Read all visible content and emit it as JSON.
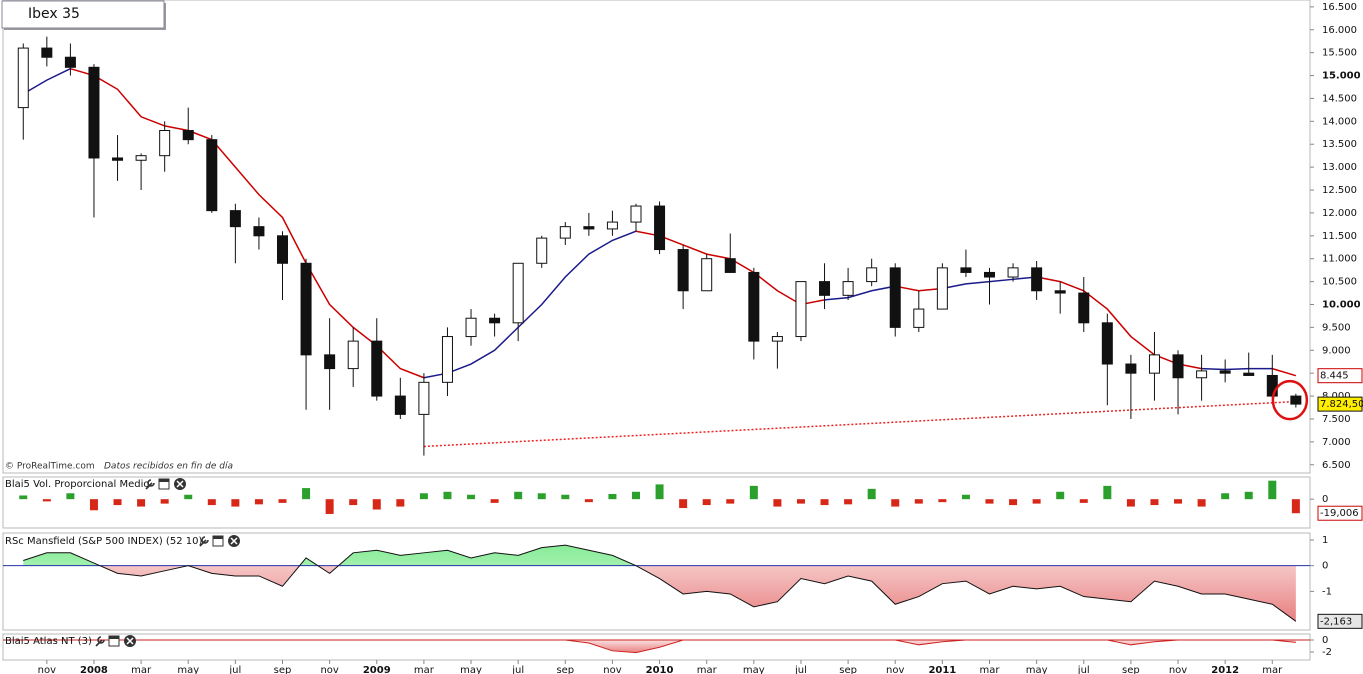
{
  "title": "Ibex 35",
  "credit": "© ProRealTime.com",
  "credit_note": "Datos recibidos en fin de día",
  "chart_data": [
    {
      "type": "candlestick",
      "x": [
        0,
        1,
        2,
        3,
        4,
        5,
        6,
        7,
        8,
        9,
        10,
        11,
        12,
        13,
        14,
        15,
        16,
        17,
        18,
        19,
        20,
        21,
        22,
        23,
        24,
        25,
        26,
        27,
        28,
        29,
        30,
        31,
        32,
        33,
        34,
        35,
        36,
        37,
        38,
        39,
        40,
        41,
        42,
        43,
        44,
        45,
        46,
        47,
        48,
        49,
        50,
        51,
        52,
        53,
        54
      ],
      "open": [
        14300,
        15600,
        15400,
        15180,
        13200,
        13150,
        13250,
        13800,
        13600,
        12050,
        11700,
        11500,
        10900,
        8900,
        8600,
        9200,
        8000,
        7600,
        8300,
        9300,
        9700,
        9600,
        10900,
        11450,
        11700,
        11650,
        11800,
        12150,
        11200,
        10300,
        11000,
        10700,
        9200,
        9300,
        10500,
        10200,
        10500,
        10800,
        9500,
        9900,
        10800,
        10700,
        10600,
        10800,
        10300,
        10250,
        9600,
        8700,
        8500,
        8900,
        8400,
        8550,
        8500,
        8450,
        8000
      ],
      "high": [
        15700,
        15850,
        15700,
        15250,
        13700,
        13300,
        14000,
        14300,
        13700,
        12200,
        11900,
        11600,
        11000,
        9700,
        9500,
        9700,
        8400,
        8500,
        9500,
        9900,
        9800,
        10900,
        11500,
        11800,
        12000,
        12050,
        12200,
        12250,
        11300,
        11100,
        11550,
        10800,
        9400,
        10500,
        10900,
        10800,
        11000,
        10900,
        10300,
        10900,
        11200,
        10800,
        10900,
        10950,
        10500,
        10600,
        9800,
        8900,
        9400,
        9000,
        8900,
        8800,
        8950,
        8900,
        8050
      ],
      "low": [
        13600,
        15200,
        15000,
        11900,
        12700,
        12500,
        12900,
        13500,
        12000,
        10900,
        11200,
        10100,
        7700,
        7700,
        8200,
        7900,
        7500,
        6700,
        8000,
        9100,
        9300,
        9200,
        10800,
        11300,
        11500,
        11500,
        11600,
        11100,
        9900,
        10300,
        10700,
        8800,
        8600,
        9200,
        9900,
        10100,
        10400,
        9300,
        9400,
        9900,
        10600,
        10000,
        10500,
        10100,
        9800,
        9400,
        7800,
        7500,
        7900,
        7600,
        7900,
        8300,
        8450,
        7950,
        7750
      ],
      "close": [
        15600,
        15400,
        15180,
        13200,
        13150,
        13250,
        13800,
        13600,
        12050,
        11700,
        11500,
        10900,
        8900,
        8600,
        9200,
        8000,
        7600,
        8300,
        9300,
        9700,
        9600,
        10900,
        11450,
        11700,
        11650,
        11800,
        12150,
        11200,
        10300,
        11000,
        10700,
        9200,
        9300,
        10500,
        10200,
        10500,
        10800,
        9500,
        9900,
        10800,
        10700,
        10600,
        10800,
        10300,
        10250,
        9600,
        8700,
        8500,
        8900,
        8400,
        8550,
        8500,
        8450,
        8000,
        7824.5
      ],
      "up_color": "#ffffff",
      "down_color": "#111111",
      "lines": [
        {
          "color": "#cc0000",
          "values": [
            null,
            null,
            15150,
            15000,
            14700,
            14100,
            13900,
            13800,
            13600,
            13000,
            12400,
            11900,
            10900,
            10000,
            9500,
            9100,
            8600,
            8400,
            null,
            null,
            null,
            null,
            null,
            null,
            null,
            null,
            11600,
            11500,
            11300,
            11100,
            11000,
            10700,
            10300,
            10000,
            10100,
            null,
            null,
            10400,
            10300,
            10350,
            null,
            null,
            null,
            10600,
            10500,
            10300,
            9900,
            9300,
            8900,
            8700,
            8600,
            null,
            null,
            8600,
            8445
          ]
        },
        {
          "color": "#1a1a8c",
          "values": [
            14600,
            14900,
            15150,
            null,
            null,
            null,
            null,
            null,
            null,
            null,
            null,
            null,
            null,
            null,
            null,
            null,
            null,
            8400,
            8500,
            8700,
            9000,
            9500,
            10000,
            10600,
            11100,
            11400,
            11600,
            null,
            null,
            null,
            null,
            null,
            null,
            null,
            10100,
            10150,
            10300,
            10400,
            null,
            10350,
            10450,
            10500,
            10550,
            10600,
            null,
            null,
            null,
            null,
            null,
            null,
            8600,
            8580,
            8600,
            8600,
            null
          ]
        }
      ],
      "trendline": {
        "color": "#ee2222",
        "x": [
          17,
          54
        ],
        "values": [
          6900,
          7880
        ]
      },
      "value_tags": [
        {
          "value": 8445,
          "label": "8.445",
          "color": "#cc0000",
          "fill": "#ffffff"
        },
        {
          "value": 7824.5,
          "label": "7.824,50",
          "color": "#111111",
          "fill": "#ffee00"
        }
      ],
      "ylim": [
        6320,
        16650
      ],
      "yticks": [
        {
          "value": 6500,
          "label": "6.500"
        },
        {
          "value": 7000,
          "label": "7.000"
        },
        {
          "value": 7500,
          "label": "7.500"
        },
        {
          "value": 8000,
          "label": "8.000"
        },
        {
          "value": 8500,
          "label": "8.500"
        },
        {
          "value": 9000,
          "label": "9.000"
        },
        {
          "value": 9500,
          "label": "9.500"
        },
        {
          "value": 10000,
          "label": "10.000"
        },
        {
          "value": 10500,
          "label": "10.500"
        },
        {
          "value": 11000,
          "label": "11.000"
        },
        {
          "value": 11500,
          "label": "11.500"
        },
        {
          "value": 12000,
          "label": "12.000"
        },
        {
          "value": 12500,
          "label": "12.500"
        },
        {
          "value": 13000,
          "label": "13.000"
        },
        {
          "value": 13500,
          "label": "13.500"
        },
        {
          "value": 14000,
          "label": "14.000"
        },
        {
          "value": 14500,
          "label": "14.500"
        },
        {
          "value": 15000,
          "label": "15.000"
        },
        {
          "value": 15500,
          "label": "15.500"
        },
        {
          "value": 16000,
          "label": "16.000"
        },
        {
          "value": 16500,
          "label": "16.500"
        }
      ],
      "xlim": [
        -0.86,
        54.6
      ],
      "xticks": [
        {
          "value": 1,
          "label": "nov"
        },
        {
          "value": 3,
          "label": "2008"
        },
        {
          "value": 5,
          "label": "mar"
        },
        {
          "value": 7,
          "label": "may"
        },
        {
          "value": 9,
          "label": "jul"
        },
        {
          "value": 11,
          "label": "sep"
        },
        {
          "value": 13,
          "label": "nov"
        },
        {
          "value": 15,
          "label": "2009"
        },
        {
          "value": 17,
          "label": "mar"
        },
        {
          "value": 19,
          "label": "may"
        },
        {
          "value": 21,
          "label": "jul"
        },
        {
          "value": 23,
          "label": "sep"
        },
        {
          "value": 25,
          "label": "nov"
        },
        {
          "value": 27,
          "label": "2010"
        },
        {
          "value": 29,
          "label": "mar"
        },
        {
          "value": 31,
          "label": "may"
        },
        {
          "value": 33,
          "label": "jul"
        },
        {
          "value": 35,
          "label": "sep"
        },
        {
          "value": 37,
          "label": "nov"
        },
        {
          "value": 39,
          "label": "2011"
        },
        {
          "value": 41,
          "label": "mar"
        },
        {
          "value": 43,
          "label": "may"
        },
        {
          "value": 45,
          "label": "jul"
        },
        {
          "value": 47,
          "label": "sep"
        },
        {
          "value": 49,
          "label": "nov"
        },
        {
          "value": 51,
          "label": "2012"
        },
        {
          "value": 53,
          "label": "mar"
        }
      ]
    },
    {
      "type": "bar",
      "title": "Blai5 Vol. Proporcional Medio",
      "values": [
        5,
        -3,
        8,
        -15,
        -8,
        -10,
        -6,
        6,
        -8,
        -10,
        -7,
        -5,
        15,
        -20,
        -8,
        -14,
        -10,
        8,
        10,
        6,
        -5,
        10,
        8,
        6,
        -4,
        7,
        10,
        20,
        -12,
        -8,
        -6,
        18,
        -10,
        -6,
        -8,
        -7,
        14,
        -10,
        -6,
        -4,
        6,
        -6,
        -8,
        -6,
        10,
        -5,
        18,
        -10,
        -8,
        -6,
        -10,
        8,
        10,
        25,
        -19.006
      ],
      "pos_color": "#2ca02c",
      "neg_color": "#d62718",
      "ylim": [
        -39,
        30
      ],
      "yticks": [
        0
      ],
      "value_tags": [
        {
          "value": -19.006,
          "label": "-19,006",
          "color": "#cc0000",
          "fill": "#ffffff"
        }
      ]
    },
    {
      "type": "area",
      "title": "RSc Mansfield (S&P 500 INDEX) (52 10)",
      "values": [
        0.2,
        0.5,
        0.5,
        0.1,
        -0.3,
        -0.4,
        -0.2,
        0.0,
        -0.3,
        -0.4,
        -0.4,
        -0.8,
        0.3,
        -0.3,
        0.5,
        0.6,
        0.4,
        0.5,
        0.6,
        0.3,
        0.5,
        0.4,
        0.7,
        0.8,
        0.6,
        0.4,
        0.0,
        -0.5,
        -1.1,
        -1.0,
        -1.1,
        -1.6,
        -1.4,
        -0.5,
        -0.7,
        -0.4,
        -0.6,
        -1.5,
        -1.2,
        -0.7,
        -0.6,
        -1.1,
        -0.8,
        -0.9,
        -0.8,
        -1.2,
        -1.3,
        -1.4,
        -0.6,
        -0.8,
        -1.1,
        -1.1,
        -1.3,
        -1.5,
        -2.163
      ],
      "pos_color": "#9ef0a8",
      "neg_color": "#ee8a8a",
      "line_color": "#111111",
      "zero_color": "#2233aa",
      "ylim": [
        -2.5,
        1.27
      ],
      "yticks": [
        1,
        0,
        -1
      ],
      "value_tags": [
        {
          "value": -2.163,
          "label": "-2,163",
          "color": "#111111",
          "fill": "#e6e6e6"
        }
      ]
    },
    {
      "type": "area",
      "title": "Blai5 Atlas NT (3)",
      "values": [
        0,
        0,
        0,
        0,
        0,
        0,
        0,
        0,
        0,
        0,
        0,
        0,
        0,
        0,
        0,
        0,
        0,
        0,
        0,
        0,
        0,
        0,
        0,
        0,
        -0.5,
        -1.8,
        -2.1,
        -1.2,
        0,
        0,
        0,
        0,
        0,
        0,
        0,
        0,
        0,
        0,
        -0.8,
        -0.3,
        0,
        0,
        0,
        0,
        0,
        0,
        0,
        -0.8,
        -0.3,
        0,
        0,
        0,
        0,
        0,
        -0.4
      ],
      "pos_color": "#9ef0a8",
      "neg_color": "#ee8a8a",
      "line_color": "#cc2222",
      "zero_color": "#cc2222",
      "ylim": [
        -3.33,
        1
      ],
      "yticks": [
        0,
        -2
      ]
    }
  ]
}
